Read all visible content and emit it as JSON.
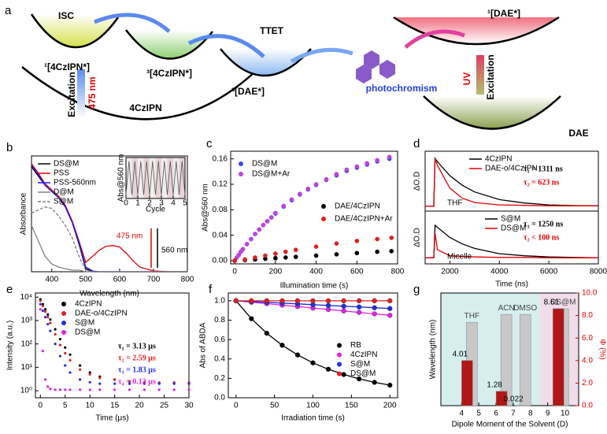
{
  "diagram": {
    "label": "a",
    "labels": {
      "isc": "ISC",
      "ttet": "TTET",
      "s1_donor": "¹[4CzIPN*]",
      "t1_donor": "³[4CzIPN*]",
      "t1_acceptor": "³[DAE*]",
      "ground_donor": "4CzIPN",
      "excitation_left": "Excitation",
      "wavelength": "475 nm",
      "photochromism": "photochromism",
      "s1_acceptor": "¹[DAE*]",
      "uv": "UV",
      "excitation_right": "Excitation",
      "ground_acceptor": "DAE"
    }
  },
  "chart_data": [
    {
      "type": "line",
      "panel": "b",
      "xlabel": "Wavelength (nm)",
      "ylabel": "Absorbance",
      "xlim": [
        340,
        800
      ],
      "ylim": [
        0,
        0.75
      ],
      "xticks": [
        400,
        500,
        600,
        700,
        800
      ],
      "legend": "upper left",
      "x": [
        340,
        360,
        380,
        400,
        420,
        440,
        460,
        480,
        500,
        520,
        540,
        560,
        580,
        600,
        620,
        640,
        660,
        700,
        750,
        800
      ],
      "series": [
        {
          "name": "DS@M",
          "color": "#000000",
          "values": [
            0.68,
            0.62,
            0.56,
            0.52,
            0.48,
            0.42,
            0.32,
            0.18,
            0.02,
            0,
            0,
            0,
            0,
            0,
            0,
            0,
            0,
            0,
            0,
            0
          ]
        },
        {
          "name": "PSS",
          "color": "#e00000",
          "values": [
            0.7,
            0.64,
            0.57,
            0.53,
            0.49,
            0.43,
            0.33,
            0.2,
            0.06,
            0.1,
            0.14,
            0.165,
            0.17,
            0.16,
            0.12,
            0.07,
            0.03,
            0.005,
            0,
            0
          ]
        },
        {
          "name": "PSS-560nm",
          "color": "#1a1aff",
          "values": [
            0.69,
            0.63,
            0.56,
            0.52,
            0.48,
            0.42,
            0.32,
            0.19,
            0.03,
            0.005,
            0,
            0,
            0,
            0,
            0,
            0,
            0,
            0,
            0,
            0
          ]
        },
        {
          "name": "D@M",
          "color": "#808080",
          "values": [
            0.3,
            0.2,
            0.1,
            0.05,
            0.03,
            0.02,
            0.01,
            0.01,
            0,
            0,
            0,
            0,
            0,
            0,
            0,
            0,
            0,
            0,
            0,
            0
          ]
        },
        {
          "name": "S@M",
          "color": "#808080",
          "dash": true,
          "values": [
            0.38,
            0.4,
            0.42,
            0.41,
            0.36,
            0.3,
            0.22,
            0.1,
            0.01,
            0,
            0,
            0,
            0,
            0,
            0,
            0,
            0,
            0,
            0,
            0
          ]
        }
      ],
      "annotations": [
        {
          "text": "475 nm",
          "color": "#e00000"
        },
        {
          "text": "560 nm",
          "color": "#000000"
        }
      ]
    },
    {
      "type": "line",
      "xlabel": "Cycle",
      "ylabel": "Abs@560 nm",
      "xlim": [
        0,
        5
      ],
      "ylim": [
        0,
        1.1
      ],
      "xticks": [
        0,
        1,
        2,
        3,
        4,
        5
      ],
      "x": [
        0,
        0.25,
        0.5,
        0.75,
        1,
        1.25,
        1.5,
        1.75,
        2,
        2.25,
        2.5,
        2.75,
        3,
        3.25,
        3.5,
        3.75,
        4,
        4.25,
        4.5,
        4.75,
        5
      ],
      "series": [
        {
          "color": "#555555",
          "values": [
            0.1,
            1,
            0.1,
            1,
            0.1,
            1,
            0.1,
            1,
            0.1,
            1,
            0.1,
            1,
            0.1,
            1,
            0.1,
            1,
            0.1,
            1,
            0.1,
            1,
            0.1
          ]
        }
      ]
    },
    {
      "type": "scatter",
      "panel": "c",
      "xlabel": "Illumination time (s)",
      "ylabel": "Abs@560 nm",
      "xlim": [
        -20,
        800
      ],
      "ylim": [
        -0.005,
        0.172
      ],
      "xticks": [
        0,
        200,
        400,
        600,
        800
      ],
      "yticks": [
        {
          "value": 0,
          "label": "0.00"
        },
        0.04,
        0.08,
        0.12,
        0.16
      ],
      "legend": "upper left",
      "series": [
        {
          "name": "DS@M",
          "color": "#3a4cf0",
          "x": [
            0,
            10,
            20,
            30,
            40,
            60,
            80,
            100,
            120,
            140,
            160,
            180,
            200,
            240,
            280,
            320,
            360,
            400,
            450,
            500,
            550,
            600,
            650,
            700,
            760
          ],
          "values": [
            0,
            0.005,
            0.009,
            0.014,
            0.018,
            0.026,
            0.034,
            0.042,
            0.049,
            0.056,
            0.062,
            0.068,
            0.074,
            0.085,
            0.095,
            0.104,
            0.112,
            0.119,
            0.127,
            0.134,
            0.141,
            0.146,
            0.151,
            0.156,
            0.16
          ]
        },
        {
          "name": "DS@M+Ar",
          "color": "#c040e0",
          "x": [
            0,
            10,
            20,
            30,
            40,
            60,
            80,
            100,
            120,
            140,
            160,
            180,
            200,
            240,
            280,
            320,
            360,
            400,
            450,
            500,
            550,
            600,
            650,
            700,
            760
          ],
          "values": [
            0,
            0.005,
            0.009,
            0.014,
            0.018,
            0.026,
            0.034,
            0.042,
            0.049,
            0.056,
            0.062,
            0.068,
            0.075,
            0.086,
            0.096,
            0.105,
            0.113,
            0.12,
            0.128,
            0.136,
            0.143,
            0.148,
            0.153,
            0.158,
            0.163
          ]
        },
        {
          "name": "DAE/4CzIPN",
          "color": "#000000",
          "x": [
            0,
            50,
            100,
            150,
            200,
            250,
            300,
            400,
            500,
            600,
            700,
            770
          ],
          "values": [
            0,
            0.001,
            0.002,
            0.003,
            0.004,
            0.005,
            0.006,
            0.008,
            0.01,
            0.012,
            0.014,
            0.015
          ]
        },
        {
          "name": "DAE/4CzIPN+Ar",
          "color": "#e02020",
          "x": [
            0,
            50,
            100,
            150,
            200,
            250,
            300,
            400,
            500,
            600,
            700,
            770
          ],
          "values": [
            0,
            0.002,
            0.005,
            0.008,
            0.011,
            0.014,
            0.017,
            0.022,
            0.027,
            0.031,
            0.034,
            0.036
          ]
        }
      ]
    },
    {
      "type": "line",
      "panel": "d",
      "ylabel": "ΔO.D",
      "xlim": [
        1000,
        8000
      ],
      "ylim": [
        -0.1,
        1.15
      ],
      "legend": "upper left",
      "x": [
        1000,
        1350,
        1400,
        1500,
        2000,
        2500,
        3000,
        4000,
        5000,
        6000,
        7000,
        8000
      ],
      "series": [
        {
          "name": "4CzIPN",
          "color": "#000000",
          "values": [
            0,
            0,
            1,
            0.93,
            0.64,
            0.44,
            0.3,
            0.14,
            0.07,
            0.03,
            0.015,
            0.01
          ]
        },
        {
          "name": "DAE-o/4CzIPN",
          "color": "#e00000",
          "values": [
            0,
            0,
            1,
            0.85,
            0.38,
            0.17,
            0.08,
            0.03,
            0.02,
            0.01,
            0.01,
            0.01
          ]
        }
      ],
      "annotations": [
        {
          "text": "τ₁ = 1311 ns",
          "color": "#000000"
        },
        {
          "text": "τ₂ = 623 ns",
          "color": "#e00000"
        },
        {
          "text": "THF",
          "color": "#000000"
        }
      ]
    },
    {
      "type": "line",
      "xlabel": "Time (ns)",
      "ylabel": "ΔO.D",
      "xlim": [
        1000,
        8000
      ],
      "ylim": [
        -0.15,
        1.15
      ],
      "xticks": [
        2000,
        4000,
        6000,
        8000
      ],
      "legend": "upper left",
      "x": [
        1000,
        1350,
        1400,
        1500,
        2000,
        2500,
        3000,
        4000,
        5000,
        6000,
        7000,
        8000
      ],
      "series": [
        {
          "name": "S@M",
          "color": "#000000",
          "values": [
            0,
            0,
            0.8,
            0.75,
            0.5,
            0.34,
            0.23,
            0.1,
            0.05,
            0.02,
            0.01,
            0
          ]
        },
        {
          "name": "DS@M",
          "color": "#e00000",
          "values": [
            0,
            0,
            0.6,
            0.2,
            0.05,
            0.03,
            0.02,
            0.01,
            0.01,
            0,
            0,
            0
          ]
        }
      ],
      "annotations": [
        {
          "text": "τ₁ = 1250 ns",
          "color": "#000000"
        },
        {
          "text": "τ₂ < 100 ns",
          "color": "#e00000"
        },
        {
          "text": "Micelle",
          "color": "#000000"
        }
      ]
    },
    {
      "type": "scatter",
      "panel": "e",
      "xlabel": "Time (μs)",
      "ylabel": "Intensity (a.u.)",
      "xlim": [
        -1,
        30
      ],
      "ylim": [
        0.5,
        15000
      ],
      "ylog": true,
      "xticks": [
        0,
        5,
        10,
        15,
        20,
        25,
        30
      ],
      "yticks": [
        {
          "value": 1,
          "label": "10⁰"
        },
        {
          "value": 10,
          "label": "10¹"
        },
        {
          "value": 100,
          "label": "10²"
        },
        {
          "value": 1000,
          "label": "10³"
        },
        {
          "value": 10000,
          "label": "10⁴"
        }
      ],
      "legend": "upper left",
      "x": [
        0,
        0.5,
        1,
        1.5,
        2,
        3,
        4,
        5,
        6,
        8,
        10,
        12,
        15,
        18,
        21,
        24,
        27,
        30
      ],
      "series": [
        {
          "name": "4CzIPN",
          "color": "#000000",
          "values": [
            8000,
            5000,
            3000,
            1800,
            1100,
            420,
            160,
            70,
            35,
            12,
            6,
            4,
            3,
            2.5,
            2.3,
            2.2,
            2.2,
            2.2
          ]
        },
        {
          "name": "DAE-o/4CzIPN",
          "color": "#e02020",
          "values": [
            7000,
            4200,
            2400,
            1400,
            780,
            260,
            90,
            40,
            20,
            8,
            5,
            3.5,
            3,
            2.5,
            2.3,
            2.2,
            2.2,
            2.2
          ]
        },
        {
          "name": "S@M",
          "color": "#2030e0",
          "values": [
            5000,
            2600,
            1400,
            700,
            360,
            100,
            30,
            12,
            6,
            3,
            2.3,
            2,
            2,
            2,
            2,
            2,
            2,
            2
          ]
        },
        {
          "name": "DS@M",
          "color": "#e020e0",
          "values": [
            3000,
            50,
            3,
            1.5,
            1.2,
            1.1,
            1.1,
            1.1,
            1.1,
            1.1,
            1.1,
            1.1,
            1.1,
            1.1,
            1.1,
            1.1,
            1.1,
            1.1
          ]
        }
      ],
      "annotations": [
        {
          "text": "τ₁ = 3.13 μs",
          "color": "#000000"
        },
        {
          "text": "τ₂ = 2.59 μs",
          "color": "#e02020"
        },
        {
          "text": "τ₃ = 1.83 μs",
          "color": "#2030e0"
        },
        {
          "text": "τ₄ = 0.12 μs",
          "color": "#e020e0"
        }
      ]
    },
    {
      "type": "line",
      "markers": true,
      "panel": "f",
      "xlabel": "Irradiation time (s)",
      "ylabel": "Abs of ABDA",
      "xlim": [
        -10,
        210
      ],
      "ylim": [
        0,
        1.08
      ],
      "xticks": [
        0,
        50,
        100,
        150,
        200
      ],
      "yticks": [
        {
          "value": 0,
          "label": "0.0"
        },
        0.2,
        0.4,
        0.6,
        0.8,
        {
          "value": 1,
          "label": "1.0"
        }
      ],
      "legend": "center right",
      "x": [
        0,
        20,
        40,
        60,
        80,
        100,
        120,
        140,
        160,
        180,
        200
      ],
      "series": [
        {
          "name": "RB",
          "color": "#000000",
          "values": [
            1,
            0.815,
            0.665,
            0.542,
            0.442,
            0.36,
            0.294,
            0.24,
            0.195,
            0.159,
            0.13
          ]
        },
        {
          "name": "4CzIPN",
          "color": "#e020e0",
          "values": [
            1,
            0.985,
            0.97,
            0.955,
            0.94,
            0.925,
            0.91,
            0.895,
            0.88,
            0.865,
            0.85
          ]
        },
        {
          "name": "S@M",
          "color": "#2030e0",
          "values": [
            1,
            0.992,
            0.984,
            0.976,
            0.968,
            0.96,
            0.952,
            0.944,
            0.936,
            0.928,
            0.92
          ]
        },
        {
          "name": "DS@M",
          "color": "#e02020",
          "values": [
            1,
            1,
            1,
            1,
            1,
            1,
            1,
            1,
            1,
            1,
            1
          ]
        }
      ]
    },
    {
      "type": "bar",
      "panel": "g",
      "xlabel": "Dipole Moment of the Solvent (D)",
      "ylabel": "Wavelength (nm)",
      "y2label": "Φ (%)",
      "y2color": "#e00000",
      "xlim": [
        2.8,
        10.8
      ],
      "ylim": [
        0,
        700
      ],
      "y2lim": [
        0,
        10
      ],
      "xticks": [
        4,
        5,
        6,
        7,
        8,
        9,
        10
      ],
      "y2ticks": [
        {
          "value": 0,
          "label": "0.0"
        },
        {
          "value": 2,
          "label": "2.0"
        },
        {
          "value": 4,
          "label": "4.0"
        },
        {
          "value": 6,
          "label": "6.0"
        },
        {
          "value": 8,
          "label": "8.0"
        },
        {
          "value": 10,
          "label": "10.0"
        }
      ],
      "categories": [
        "THF",
        "ACN",
        "DMSO",
        "DS@M"
      ],
      "x": [
        4.6,
        6.6,
        7.7,
        9.9
      ],
      "series": [
        {
          "color": "#c8c8c8",
          "values": [
            518,
            567,
            567,
            602
          ]
        },
        {
          "color": "#b01818",
          "axis": "y2",
          "show_values": true,
          "values": [
            4.01,
            1.28,
            0.022,
            8.61
          ]
        }
      ]
    }
  ]
}
